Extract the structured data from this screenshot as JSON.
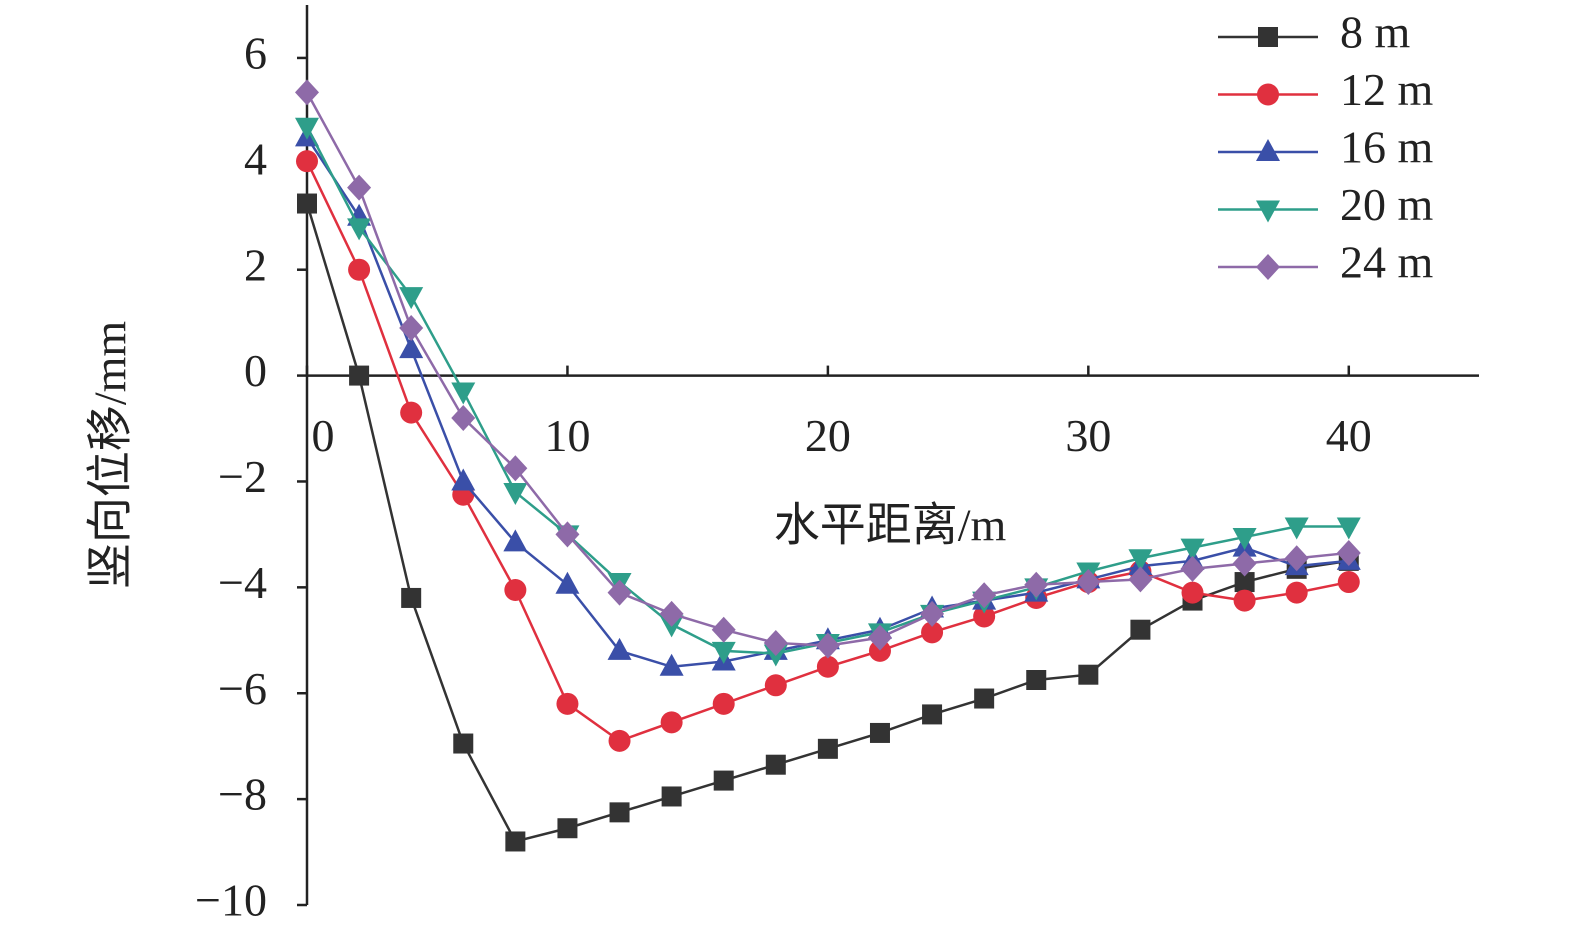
{
  "chart_data": {
    "type": "line",
    "x_label": "水平距离/m",
    "y_label": "竖向位移/mm",
    "x": [
      0,
      2,
      4,
      6,
      8,
      10,
      12,
      14,
      16,
      18,
      20,
      22,
      24,
      26,
      28,
      30,
      32,
      34,
      36,
      38,
      40
    ],
    "series": [
      {
        "name": "8 m",
        "color": "#333333",
        "marker": "square",
        "values": [
          3.25,
          0,
          -4.2,
          -6.95,
          -8.8,
          -8.55,
          -8.25,
          -7.95,
          -7.65,
          -7.35,
          -7.05,
          -6.75,
          -6.4,
          -6.1,
          -5.75,
          -5.65,
          -4.8,
          -4.25,
          -3.9,
          -3.65,
          -3.5
        ]
      },
      {
        "name": "12 m",
        "color": "#e0303f",
        "marker": "circle",
        "values": [
          4.05,
          2.0,
          -0.7,
          -2.25,
          -4.05,
          -6.2,
          -6.9,
          -6.55,
          -6.2,
          -5.85,
          -5.5,
          -5.2,
          -4.85,
          -4.55,
          -4.2,
          -3.9,
          -3.7,
          -4.1,
          -4.25,
          -4.1,
          -3.9
        ]
      },
      {
        "name": "16 m",
        "color": "#3a4fa8",
        "marker": "triangle-up",
        "values": [
          4.5,
          3.0,
          0.5,
          -2.0,
          -3.15,
          -3.95,
          -5.2,
          -5.5,
          -5.4,
          -5.2,
          -5.0,
          -4.8,
          -4.4,
          -4.25,
          -4.1,
          -3.85,
          -3.6,
          -3.5,
          -3.25,
          -3.6,
          -3.5
        ]
      },
      {
        "name": "20 m",
        "color": "#2e9e8a",
        "marker": "triangle-down",
        "values": [
          4.7,
          2.8,
          1.5,
          -0.3,
          -2.2,
          -3.0,
          -3.9,
          -4.7,
          -5.2,
          -5.25,
          -5.05,
          -4.85,
          -4.5,
          -4.25,
          -4.0,
          -3.7,
          -3.45,
          -3.25,
          -3.05,
          -2.85,
          -2.85
        ]
      },
      {
        "name": "24 m",
        "color": "#8e6aa8",
        "marker": "diamond",
        "values": [
          5.35,
          3.55,
          0.9,
          -0.8,
          -1.75,
          -3.0,
          -4.1,
          -4.5,
          -4.8,
          -5.05,
          -5.1,
          -4.95,
          -4.5,
          -4.15,
          -3.95,
          -3.9,
          -3.85,
          -3.65,
          -3.55,
          -3.45,
          -3.35
        ]
      }
    ],
    "xlim": [
      0,
      45
    ],
    "ylim": [
      -10,
      7
    ],
    "xticks": [
      0,
      10,
      20,
      30,
      40
    ],
    "yticks": [
      6,
      4,
      2,
      0,
      {
        "value": -2,
        "label": "−2"
      },
      {
        "value": -4,
        "label": "−4"
      },
      {
        "value": -6,
        "label": "−6"
      },
      {
        "value": -8,
        "label": "−8"
      },
      {
        "value": -10,
        "label": "−10"
      }
    ],
    "legend": "top-right"
  }
}
